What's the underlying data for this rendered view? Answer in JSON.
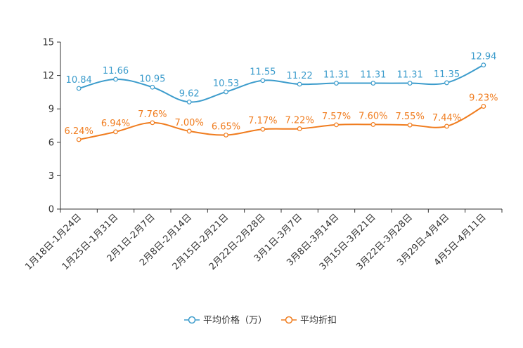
{
  "chart_data": {
    "type": "line",
    "title": "",
    "xlabel": "",
    "ylabel": "",
    "ylim": [
      0,
      15
    ],
    "yticks": [
      "0",
      "3",
      "6",
      "9",
      "12",
      "15"
    ],
    "grid": false,
    "legend_position": "bottom-center",
    "categories": [
      "1月18日-1月24日",
      "1月25日-1月31日",
      "2月1日-2月7日",
      "2月8日-2月14日",
      "2月15日-2月21日",
      "2月22日-2月28日",
      "3月1日-3月7日",
      "3月8日-3月14日",
      "3月15日-3月21日",
      "3月22日-3月28日",
      "3月29日-4月4日",
      "4月5日-4月11日"
    ],
    "series": [
      {
        "name": "平均价格（万）",
        "color": "#3c9ccc",
        "values": [
          10.84,
          11.66,
          10.95,
          9.62,
          10.53,
          11.55,
          11.22,
          11.31,
          11.31,
          11.31,
          11.35,
          12.94
        ],
        "labels": [
          "10.84",
          "11.66",
          "10.95",
          "9.62",
          "10.53",
          "11.55",
          "11.22",
          "11.31",
          "11.31",
          "11.31",
          "11.35",
          "12.94"
        ]
      },
      {
        "name": "平均折扣",
        "color": "#f07c1e",
        "values": [
          6.24,
          6.94,
          7.76,
          7.0,
          6.65,
          7.17,
          7.22,
          7.57,
          7.6,
          7.55,
          7.44,
          9.23
        ],
        "labels": [
          "6.24%",
          "6.94%",
          "7.76%",
          "7.00%",
          "6.65%",
          "7.17%",
          "7.22%",
          "7.57%",
          "7.60%",
          "7.55%",
          "7.44%",
          "9.23%"
        ]
      }
    ]
  }
}
